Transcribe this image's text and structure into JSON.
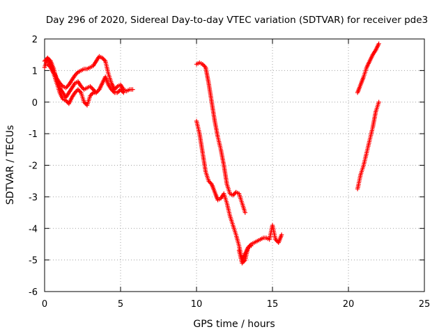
{
  "chart_data": {
    "type": "scatter",
    "title": "Day 296 of 2020, Sidereal Day-to-day VTEC variation (SDTVAR) for receiver pde3",
    "xlabel": "GPS time / hours",
    "ylabel": "SDTVAR / TECUs",
    "xlim": [
      0,
      25
    ],
    "ylim": [
      -6,
      2
    ],
    "xticks": [
      0,
      5,
      10,
      15,
      20,
      25
    ],
    "yticks": [
      -6,
      -5,
      -4,
      -3,
      -2,
      -1,
      0,
      1,
      2
    ],
    "grid": true,
    "legend": "none",
    "marker": "plus",
    "color": "#ff0000",
    "series": [
      {
        "points": [
          [
            0.0,
            1.1
          ],
          [
            0.2,
            1.4
          ],
          [
            0.4,
            1.3
          ],
          [
            0.6,
            1.05
          ],
          [
            0.8,
            0.7
          ],
          [
            1.0,
            0.45
          ],
          [
            1.2,
            0.3
          ],
          [
            1.4,
            0.15
          ],
          [
            1.6,
            0.3
          ],
          [
            1.8,
            0.45
          ],
          [
            2.0,
            0.6
          ],
          [
            2.2,
            0.65
          ],
          [
            2.4,
            0.5
          ],
          [
            2.6,
            0.4
          ],
          [
            2.8,
            0.45
          ],
          [
            3.0,
            0.5
          ],
          [
            3.2,
            0.4
          ],
          [
            3.4,
            0.3
          ],
          [
            0.0,
            1.3
          ],
          [
            0.2,
            1.4
          ],
          [
            0.4,
            1.2
          ],
          [
            0.6,
            0.95
          ],
          [
            0.8,
            0.75
          ],
          [
            1.0,
            0.6
          ],
          [
            1.2,
            0.5
          ],
          [
            1.4,
            0.45
          ],
          [
            1.6,
            0.55
          ],
          [
            1.8,
            0.7
          ],
          [
            2.0,
            0.85
          ],
          [
            2.2,
            0.95
          ],
          [
            2.4,
            1.0
          ],
          [
            2.6,
            1.05
          ],
          [
            2.8,
            1.05
          ],
          [
            3.0,
            1.1
          ],
          [
            3.2,
            1.15
          ],
          [
            3.4,
            1.3
          ],
          [
            3.6,
            1.45
          ],
          [
            3.8,
            1.4
          ],
          [
            4.0,
            1.3
          ],
          [
            4.2,
            0.9
          ],
          [
            4.4,
            0.6
          ],
          [
            4.6,
            0.4
          ],
          [
            4.8,
            0.5
          ],
          [
            5.0,
            0.55
          ],
          [
            5.2,
            0.4
          ],
          [
            5.4,
            0.35
          ],
          [
            5.6,
            0.4
          ],
          [
            5.8,
            0.4
          ],
          [
            0.2,
            1.2
          ],
          [
            0.4,
            1.1
          ],
          [
            0.6,
            0.9
          ],
          [
            0.8,
            0.6
          ],
          [
            1.0,
            0.3
          ],
          [
            1.2,
            0.1
          ],
          [
            1.4,
            0.05
          ],
          [
            1.6,
            -0.05
          ],
          [
            1.8,
            0.15
          ],
          [
            2.0,
            0.3
          ],
          [
            2.2,
            0.4
          ],
          [
            2.4,
            0.3
          ],
          [
            2.6,
            0.0
          ],
          [
            2.8,
            -0.1
          ],
          [
            3.0,
            0.2
          ],
          [
            3.2,
            0.3
          ],
          [
            3.4,
            0.3
          ],
          [
            3.6,
            0.4
          ],
          [
            3.8,
            0.6
          ],
          [
            4.0,
            0.8
          ],
          [
            4.2,
            0.55
          ],
          [
            4.4,
            0.4
          ],
          [
            4.6,
            0.3
          ],
          [
            4.8,
            0.3
          ],
          [
            5.0,
            0.4
          ],
          [
            5.2,
            0.3
          ],
          [
            10.0,
            1.2
          ],
          [
            10.2,
            1.25
          ],
          [
            10.4,
            1.2
          ],
          [
            10.6,
            1.1
          ],
          [
            10.8,
            0.6
          ],
          [
            11.0,
            0.0
          ],
          [
            11.2,
            -0.6
          ],
          [
            11.4,
            -1.1
          ],
          [
            11.6,
            -1.5
          ],
          [
            11.8,
            -2.0
          ],
          [
            12.0,
            -2.6
          ],
          [
            12.2,
            -2.9
          ],
          [
            12.4,
            -2.95
          ],
          [
            12.6,
            -2.85
          ],
          [
            12.8,
            -2.9
          ],
          [
            13.0,
            -3.2
          ],
          [
            13.2,
            -3.5
          ],
          [
            10.0,
            -0.6
          ],
          [
            10.2,
            -1.0
          ],
          [
            10.4,
            -1.6
          ],
          [
            10.6,
            -2.2
          ],
          [
            10.8,
            -2.5
          ],
          [
            11.0,
            -2.6
          ],
          [
            11.2,
            -2.85
          ],
          [
            11.4,
            -3.1
          ],
          [
            11.6,
            -3.05
          ],
          [
            11.8,
            -2.9
          ],
          [
            12.0,
            -3.2
          ],
          [
            12.2,
            -3.6
          ],
          [
            12.4,
            -3.9
          ],
          [
            12.6,
            -4.2
          ],
          [
            12.8,
            -4.55
          ],
          [
            13.0,
            -5.0
          ],
          [
            13.2,
            -4.8
          ],
          [
            13.4,
            -4.6
          ],
          [
            13.6,
            -4.5
          ],
          [
            13.8,
            -4.45
          ],
          [
            14.0,
            -4.4
          ],
          [
            14.2,
            -4.35
          ],
          [
            14.4,
            -4.3
          ],
          [
            14.6,
            -4.3
          ],
          [
            14.8,
            -4.35
          ],
          [
            15.0,
            -3.9
          ],
          [
            15.2,
            -4.35
          ],
          [
            15.4,
            -4.45
          ],
          [
            15.6,
            -4.2
          ],
          [
            12.8,
            -4.7
          ],
          [
            13.0,
            -5.1
          ],
          [
            13.2,
            -5.0
          ],
          [
            13.4,
            -4.6
          ],
          [
            13.6,
            -4.55
          ],
          [
            20.6,
            0.3
          ],
          [
            20.8,
            0.55
          ],
          [
            21.0,
            0.8
          ],
          [
            21.2,
            1.1
          ],
          [
            21.4,
            1.3
          ],
          [
            21.6,
            1.5
          ],
          [
            21.8,
            1.65
          ],
          [
            22.0,
            1.85
          ],
          [
            20.6,
            -2.75
          ],
          [
            20.8,
            -2.3
          ],
          [
            21.0,
            -2.0
          ],
          [
            21.2,
            -1.6
          ],
          [
            21.4,
            -1.2
          ],
          [
            21.6,
            -0.8
          ],
          [
            21.8,
            -0.3
          ],
          [
            22.0,
            0.0
          ]
        ]
      }
    ]
  }
}
